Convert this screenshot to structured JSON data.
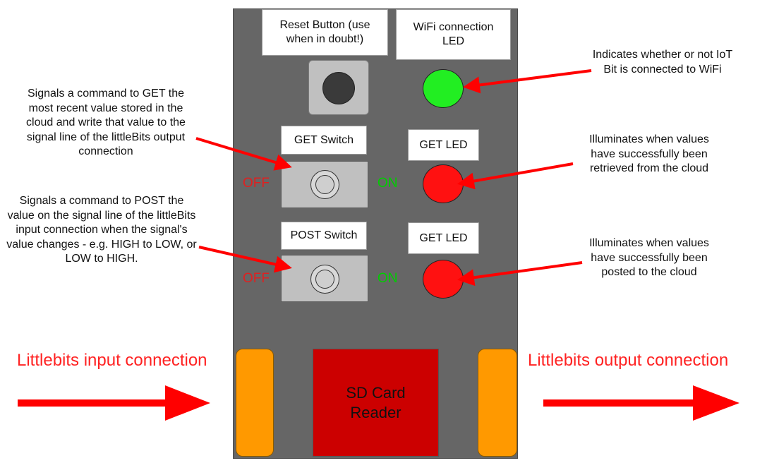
{
  "board": {
    "reset_label": "Reset Button (use when in doubt!)",
    "wifi_label": "WiFi connection LED",
    "get_switch_label": "GET Switch",
    "get_led_label": "GET LED",
    "post_switch_label": "POST Switch",
    "post_led_label": "GET LED",
    "off_text": "OFF",
    "on_text": "ON",
    "sd_label": "SD Card Reader"
  },
  "annotations": {
    "wifi_note": "Indicates whether or not IoT Bit is connected to WiFi",
    "get_switch_note": "Signals a command to GET the most recent value stored in the cloud and write that value to the signal line of the littleBits output connection",
    "post_switch_note": "Signals a command to POST the value on the signal line of the littleBits input connection when the signal's value changes - e.g. HIGH to LOW, or LOW to HIGH.",
    "get_led_note": "Illuminates when values have successfully been retrieved from the cloud",
    "post_led_note": "Illuminates when values have successfully been posted to the cloud",
    "input_label": "Littlebits input connection",
    "output_label": "Littlebits output connection"
  },
  "colors": {
    "board": "#666666",
    "wifi_led": "#22ee22",
    "status_led": "#ff1111",
    "off": "#e02020",
    "on": "#00cc00",
    "arrow": "#ff0000",
    "connector": "#ff9900",
    "sd_card": "#cc0000"
  },
  "icons": {
    "reset_button": "round-push-button",
    "switch": "round-toggle-switch",
    "arrow": "red-arrow"
  }
}
